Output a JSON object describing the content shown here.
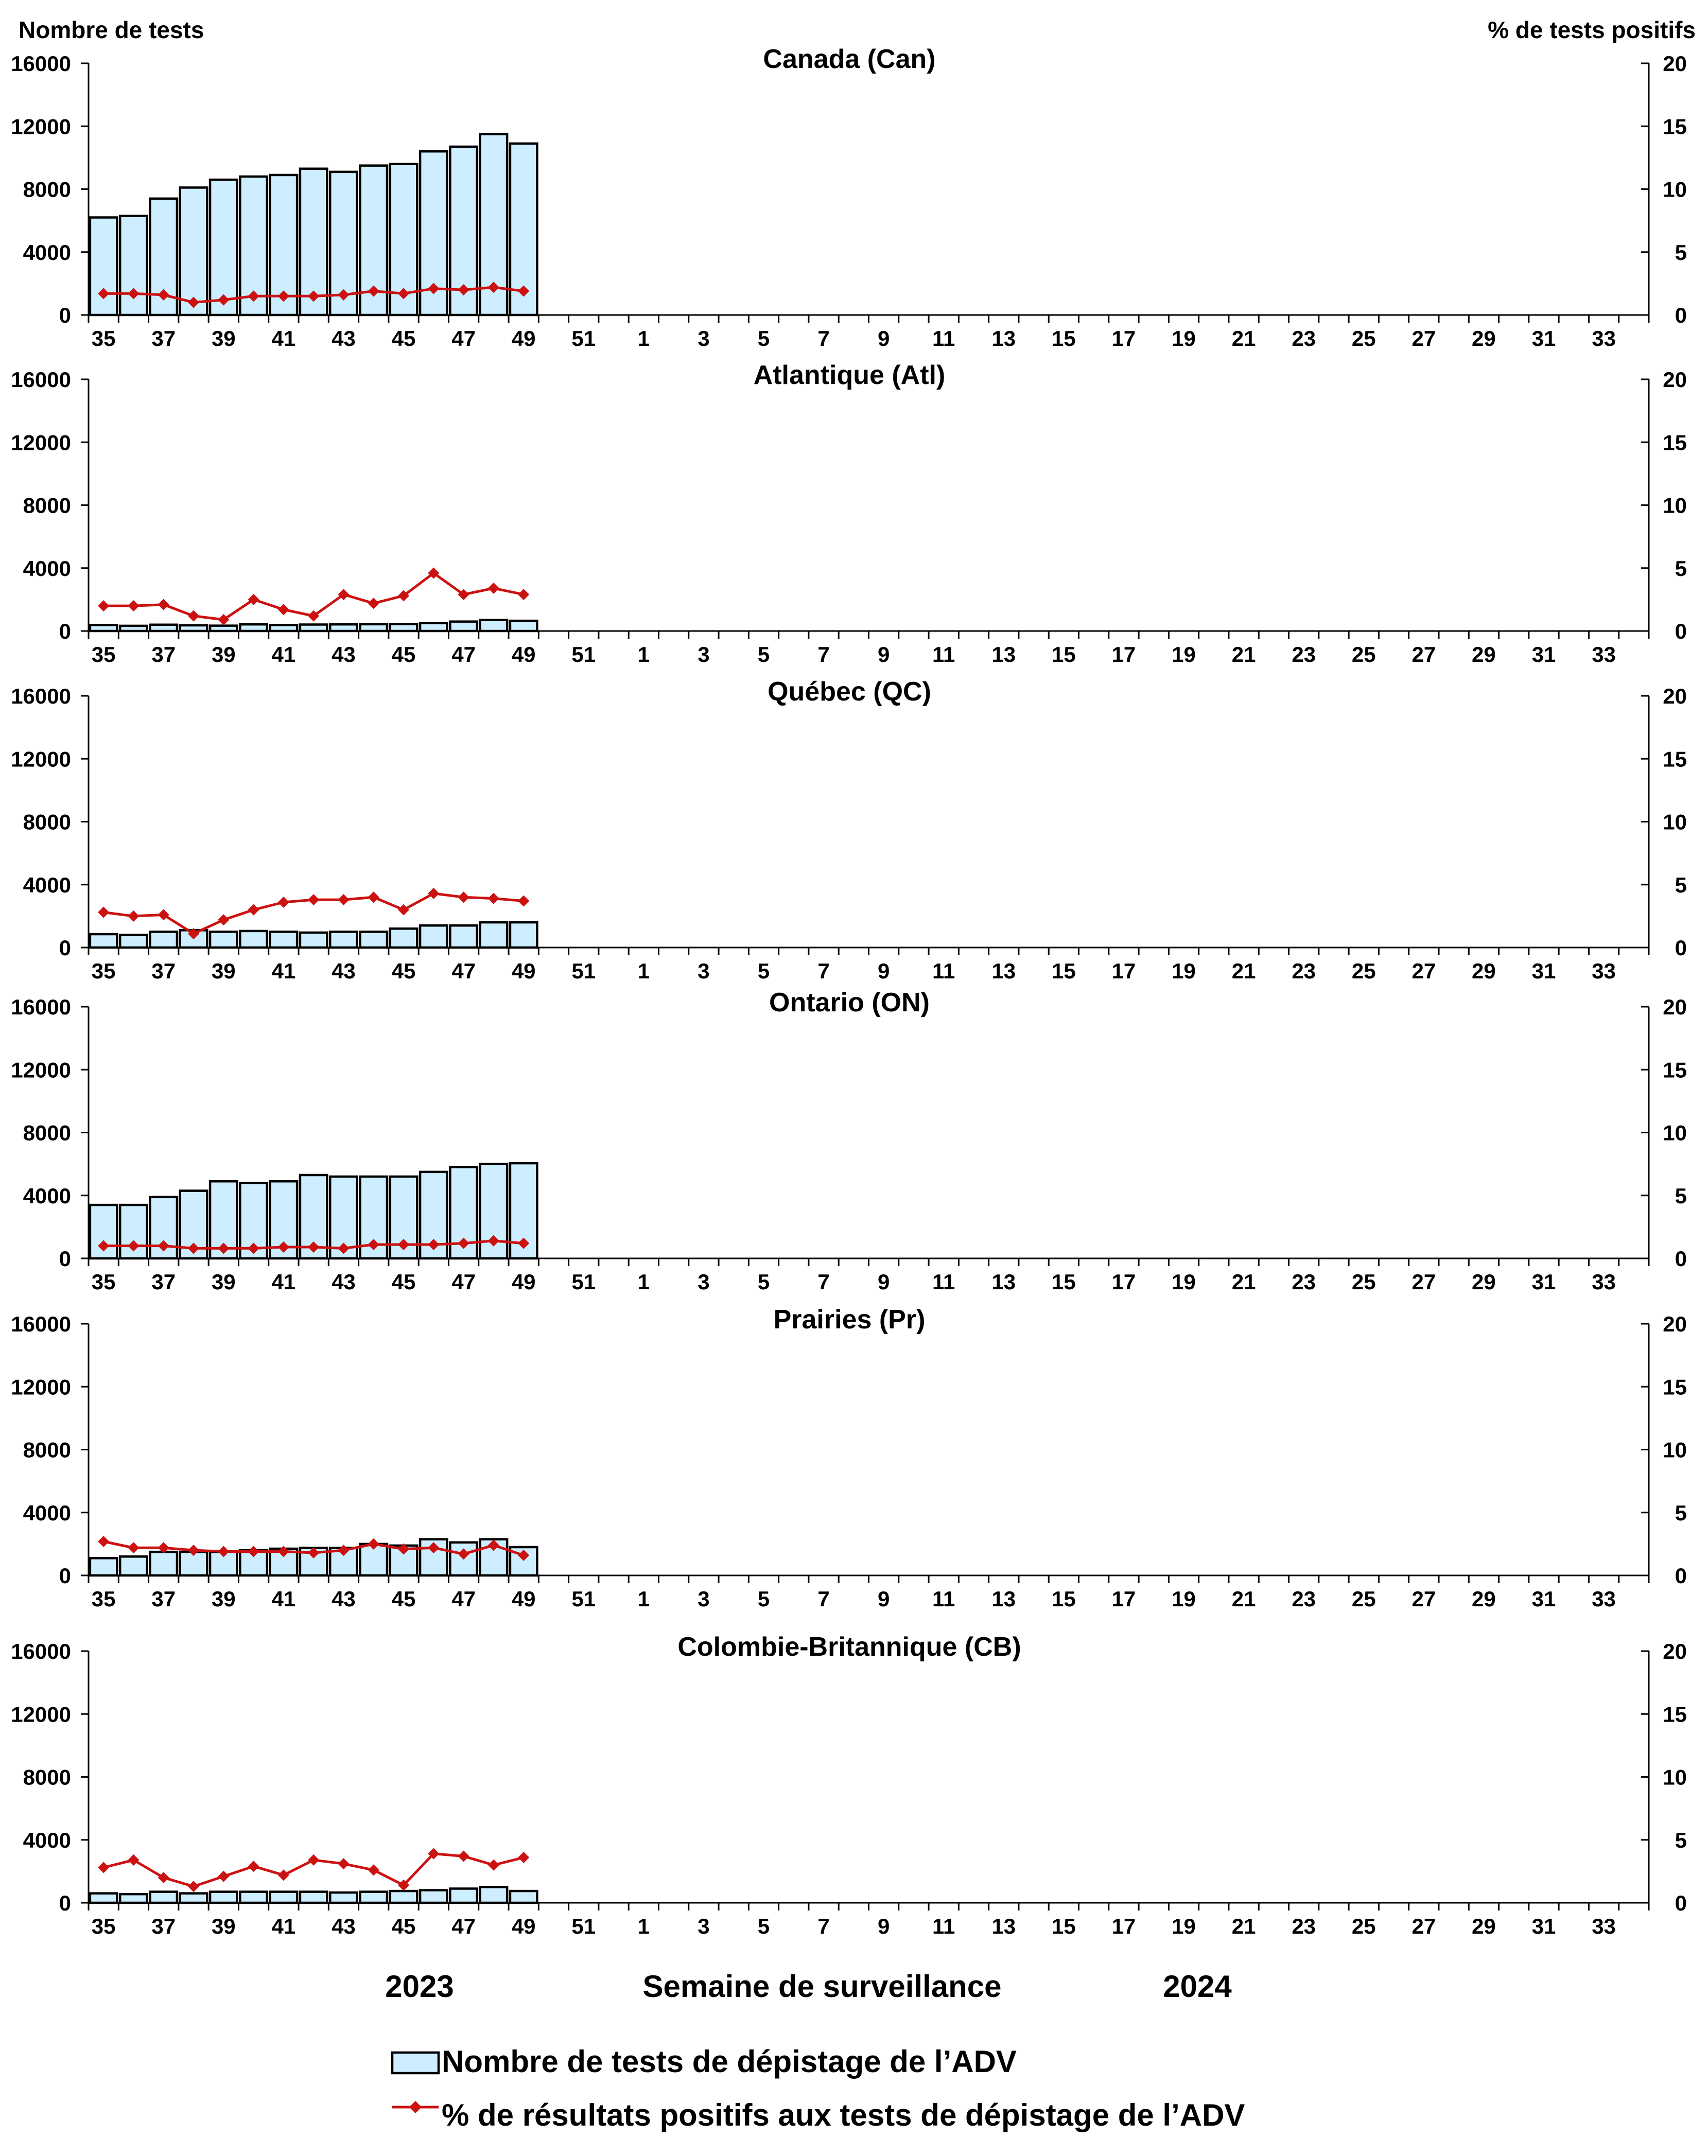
{
  "chart_data": {
    "type": "bar+line",
    "left_axis_title": "Nombre de tests",
    "right_axis_title": "% de tests positifs",
    "x_categories": [
      "35",
      "36",
      "37",
      "38",
      "39",
      "40",
      "41",
      "42",
      "43",
      "44",
      "45",
      "46",
      "47",
      "48",
      "49",
      "50",
      "51",
      "52",
      "1",
      "2",
      "3",
      "4",
      "5",
      "6",
      "7",
      "8",
      "9",
      "10",
      "11",
      "12",
      "13",
      "14",
      "15",
      "16",
      "17",
      "18",
      "19",
      "20",
      "21",
      "22",
      "23",
      "24",
      "25",
      "26",
      "27",
      "28",
      "29",
      "30",
      "31",
      "32",
      "33",
      "34"
    ],
    "x_tick_labels": [
      "35",
      "37",
      "39",
      "41",
      "43",
      "45",
      "47",
      "49",
      "51",
      "1",
      "3",
      "5",
      "7",
      "9",
      "11",
      "13",
      "15",
      "17",
      "19",
      "21",
      "23",
      "25",
      "27",
      "29",
      "31",
      "33"
    ],
    "y_left": {
      "min": 0,
      "max": 16000,
      "ticks": [
        0,
        4000,
        8000,
        12000,
        16000
      ]
    },
    "y_right": {
      "min": 0,
      "max": 20,
      "ticks": [
        0,
        5,
        10,
        15,
        20
      ]
    },
    "year_labels": [
      "2023",
      "2024"
    ],
    "xlabel": "Semaine de surveillance",
    "legend": {
      "bar_label": "Nombre de tests de dépistage de l’ADV",
      "line_label": "% de résultats positifs aux tests de dépistage de l’ADV"
    },
    "colors": {
      "bar_fill": "#cceeff",
      "bar_stroke": "#000000",
      "line": "#cc1111"
    },
    "panels": [
      {
        "title": "Canada (Can)",
        "tests": [
          6200,
          6300,
          7400,
          8100,
          8600,
          8800,
          8900,
          9300,
          9100,
          9500,
          9600,
          10400,
          10700,
          11500,
          10900
        ],
        "pct_positive": [
          1.7,
          1.7,
          1.6,
          1.0,
          1.2,
          1.5,
          1.5,
          1.5,
          1.6,
          1.9,
          1.7,
          2.1,
          2.0,
          2.2,
          1.9
        ]
      },
      {
        "title": "Atlantique (Atl)",
        "tests": [
          380,
          330,
          400,
          360,
          340,
          420,
          380,
          410,
          420,
          430,
          440,
          500,
          600,
          700,
          650
        ],
        "pct_positive": [
          2.0,
          2.0,
          2.1,
          1.2,
          0.9,
          2.5,
          1.7,
          1.2,
          2.9,
          2.2,
          2.8,
          4.6,
          2.9,
          3.4,
          2.9
        ]
      },
      {
        "title": "Québec (QC)",
        "tests": [
          850,
          800,
          1000,
          1100,
          1000,
          1050,
          1000,
          950,
          1000,
          1000,
          1200,
          1400,
          1400,
          1600,
          1600
        ],
        "pct_positive": [
          2.8,
          2.5,
          2.6,
          1.1,
          2.2,
          3.0,
          3.6,
          3.8,
          3.8,
          4.0,
          3.0,
          4.3,
          4.0,
          3.9,
          3.7
        ]
      },
      {
        "title": "Ontario (ON)",
        "tests": [
          3400,
          3400,
          3900,
          4300,
          4900,
          4800,
          4900,
          5300,
          5200,
          5200,
          5200,
          5500,
          5800,
          6000,
          6050
        ],
        "pct_positive": [
          1.0,
          1.0,
          1.0,
          0.8,
          0.8,
          0.8,
          0.9,
          0.9,
          0.8,
          1.1,
          1.1,
          1.1,
          1.2,
          1.4,
          1.2
        ]
      },
      {
        "title": "Prairies (Pr)",
        "tests": [
          1100,
          1200,
          1500,
          1500,
          1500,
          1600,
          1700,
          1750,
          1750,
          2000,
          1900,
          2300,
          2100,
          2300,
          1800
        ],
        "pct_positive": [
          2.7,
          2.2,
          2.2,
          2.0,
          1.9,
          1.9,
          1.9,
          1.8,
          2.0,
          2.5,
          2.1,
          2.2,
          1.7,
          2.4,
          1.6
        ]
      },
      {
        "title": "Colombie-Britannique (CB)",
        "tests": [
          600,
          550,
          700,
          600,
          700,
          700,
          700,
          700,
          650,
          700,
          750,
          800,
          900,
          1000,
          750
        ],
        "pct_positive": [
          2.8,
          3.4,
          2.0,
          1.3,
          2.1,
          2.9,
          2.2,
          3.4,
          3.1,
          2.6,
          1.4,
          3.9,
          3.7,
          3.0,
          3.6
        ]
      }
    ]
  }
}
